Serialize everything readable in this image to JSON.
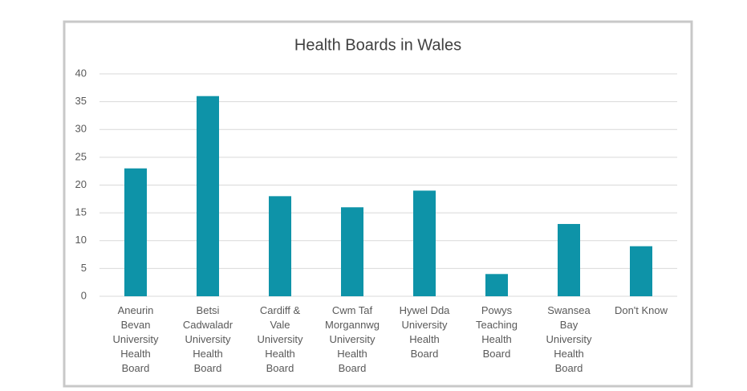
{
  "chart_data": {
    "type": "bar",
    "title": "Health Boards in Wales",
    "categories": [
      "Aneurin\nBevan\nUniversity\nHealth\nBoard",
      "Betsi\nCadwaladr\nUniversity\nHealth\nBoard",
      "Cardiff &\nVale\nUniversity\nHealth\nBoard",
      "Cwm Taf\nMorgannwg\nUniversity\nHealth\nBoard",
      "Hywel Dda\nUniversity\nHealth\nBoard",
      "Powys\nTeaching\nHealth\nBoard",
      "Swansea\nBay\nUniversity\nHealth\nBoard",
      "Don't Know"
    ],
    "values": [
      23,
      36,
      18,
      16,
      19,
      4,
      13,
      9
    ],
    "color": "#0e93a8",
    "ylim": [
      0,
      40
    ],
    "yticks": [
      0,
      5,
      10,
      15,
      20,
      25,
      30,
      35,
      40
    ],
    "grid": true
  }
}
